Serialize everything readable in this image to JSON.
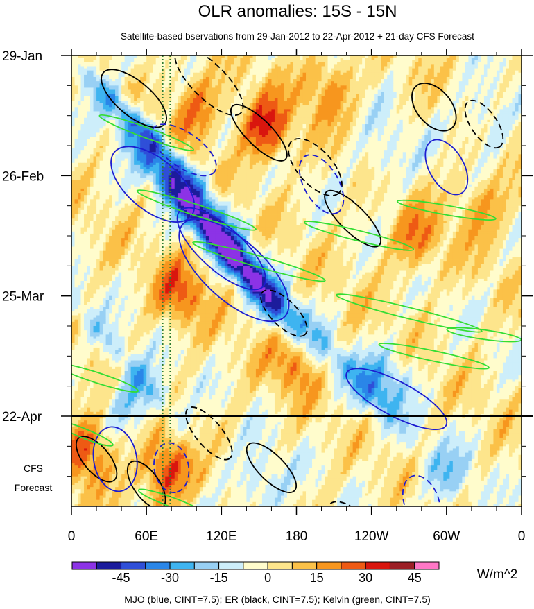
{
  "chart_data": {
    "type": "heatmap",
    "title": "OLR anomalies: 15S - 15N",
    "subtitle": "Satellite-based bservations from 29-Jan-2012 to 22-Apr-2012 + 21-day CFS Forecast",
    "x_tick_labels": [
      "0",
      "60E",
      "120E",
      "180",
      "120W",
      "60W",
      "0"
    ],
    "x_tick_values_deg_east": [
      0,
      60,
      120,
      180,
      240,
      300,
      360
    ],
    "y_tick_labels": [
      "29-Jan",
      "26-Feb",
      "25-Mar",
      "22-Apr"
    ],
    "y_tick_dates": [
      "2012-01-29",
      "2012-02-26",
      "2012-03-25",
      "2012-04-22"
    ],
    "time_range": [
      "2012-01-29",
      "2012-05-13"
    ],
    "forecast_start": "2012-04-22",
    "forecast_label_lines": [
      "CFS",
      "Forecast"
    ],
    "colorbar": {
      "unit": "W/m^2",
      "tick_labels": [
        "-45",
        "-30",
        "-15",
        "0",
        "15",
        "30",
        "45"
      ],
      "levels": [
        -52.5,
        -45,
        -37.5,
        -30,
        -22.5,
        -15,
        -7.5,
        0,
        7.5,
        15,
        22.5,
        30,
        37.5,
        45,
        52.5
      ],
      "colors": [
        "#8c33e6",
        "#1c1c9c",
        "#2f4fd8",
        "#2a86e8",
        "#3eb4f0",
        "#98d0f4",
        "#cdeefa",
        "#fffccc",
        "#fde58c",
        "#fbc148",
        "#f7961e",
        "#ee5a14",
        "#d9160e",
        "#9c1f26",
        "#ff77c6"
      ]
    },
    "contour_legend": "MJO (blue, CINT=7.5); ER (black, CINT=7.5); Kelvin (green, CINT=7.5)",
    "contour_colors": {
      "mjo": "#1c1cd0",
      "er": "#000000",
      "kelvin": "#33dd33"
    },
    "feature_lines": [
      {
        "name": "",
        "style": "dotted",
        "color": "#2e7d32",
        "lon_deg_east": [
          73,
          79
        ]
      }
    ],
    "anomaly_fields": {
      "wave_bands": [
        {
          "lon": 60,
          "date": "2012-02-16",
          "slope_deg_per_day": 3.4,
          "amp": 26
        },
        {
          "lon": 125,
          "date": "2012-03-13",
          "slope_deg_per_day": 2.6,
          "amp": 44
        },
        {
          "lon": 90,
          "date": "2012-03-04",
          "slope_deg_per_day": 2.8,
          "amp": 30
        },
        {
          "lon": 200,
          "date": "2012-04-04",
          "slope_deg_per_day": 3.0,
          "amp": 18
        },
        {
          "lon": 40,
          "date": "2012-04-08",
          "slope_deg_per_day": 3.0,
          "amp": 16
        }
      ],
      "blobs": [
        {
          "lon": 155,
          "date": "2012-02-15",
          "amp": 34
        },
        {
          "lon": 100,
          "date": "2012-02-10",
          "amp": 22
        },
        {
          "lon": 88,
          "date": "2012-03-24",
          "amp": 24
        },
        {
          "lon": 205,
          "date": "2012-02-05",
          "amp": 20
        },
        {
          "lon": 275,
          "date": "2012-03-12",
          "amp": 20
        },
        {
          "lon": 75,
          "date": "2012-05-05",
          "amp": 34
        },
        {
          "lon": 13,
          "date": "2012-04-30",
          "amp": 30
        },
        {
          "lon": 330,
          "date": "2012-03-04",
          "amp": 18
        },
        {
          "lon": 180,
          "date": "2012-04-09",
          "amp": 22
        },
        {
          "lon": 250,
          "date": "2012-04-14",
          "amp": -24
        },
        {
          "lon": 150,
          "date": "2012-05-08",
          "amp": -18
        },
        {
          "lon": 300,
          "date": "2012-05-06",
          "amp": -16
        },
        {
          "lon": 330,
          "date": "2012-02-12",
          "amp": -16
        },
        {
          "lon": 50,
          "date": "2012-04-18",
          "amp": -20
        },
        {
          "lon": 250,
          "date": "2012-02-22",
          "amp": -14
        }
      ]
    }
  }
}
